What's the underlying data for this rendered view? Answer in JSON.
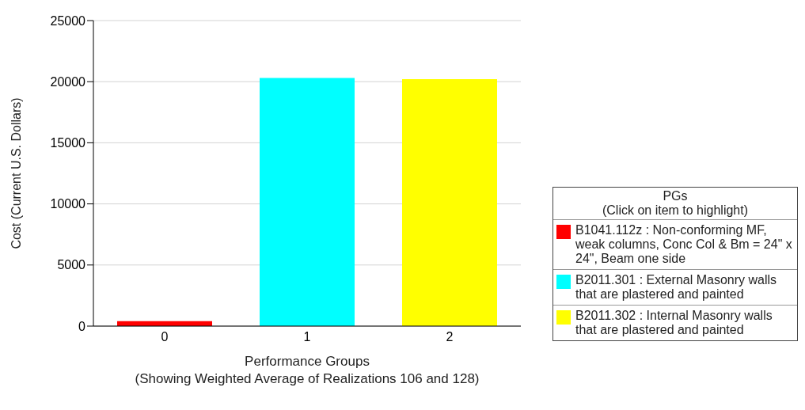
{
  "chart_data": {
    "type": "bar",
    "xlabel": "Performance Groups\n(Showing Weighted Average of Realizations 106 and 128)",
    "ylabel": "Cost (Current U.S. Dollars)",
    "categories": [
      "0",
      "1",
      "2"
    ],
    "stacked": true,
    "series": [
      {
        "name": "B1041.112z : Non-conforming MF, weak columns, Conc Col & Bm = 24\" x 24\", Beam one side",
        "color": "#ff0000",
        "values": [
          400,
          null,
          null
        ]
      },
      {
        "name": "B2011.301 : External Masonry walls that are plastered and painted",
        "color": "#00ffff",
        "values": [
          null,
          20300,
          null
        ]
      },
      {
        "name": "B2011.302 : Internal Masonry walls that are plastered and painted",
        "color": "#ffff00",
        "values": [
          null,
          null,
          20200
        ]
      }
    ],
    "ylim": [
      0,
      25000
    ],
    "yticks": [
      0,
      5000,
      10000,
      15000,
      20000,
      25000
    ],
    "grid": "y",
    "legend": "right",
    "legend_title": "PGs\n(Click on item to highlight)"
  }
}
